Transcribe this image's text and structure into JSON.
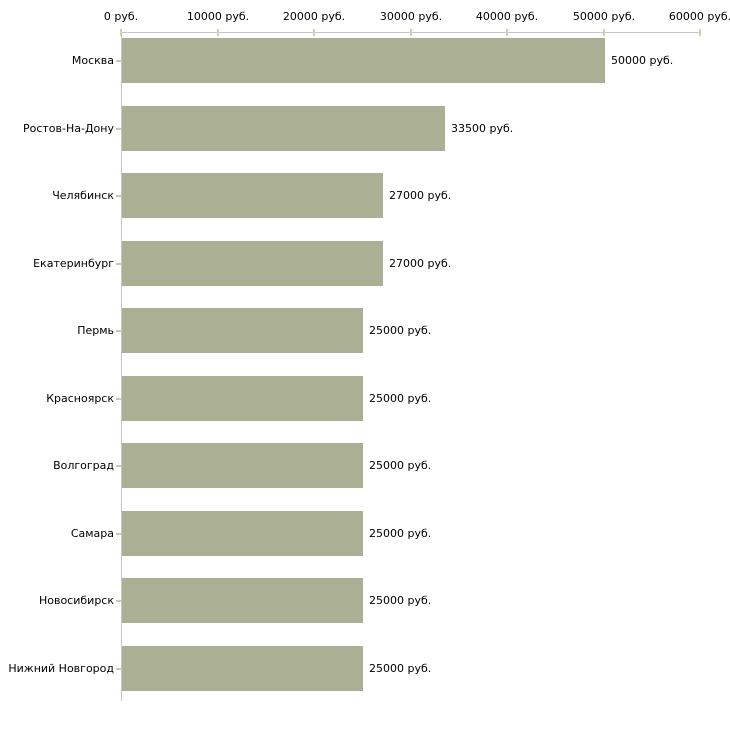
{
  "chart_data": {
    "type": "bar",
    "orientation": "horizontal",
    "title": "",
    "xlabel": "",
    "ylabel": "",
    "categories": [
      "Москва",
      "Ростов-На-Дону",
      "Челябинск",
      "Екатеринбург",
      "Пермь",
      "Красноярск",
      "Волгоград",
      "Самара",
      "Новосибирск",
      "Нижний Новгород"
    ],
    "values": [
      50000,
      33500,
      27000,
      27000,
      25000,
      25000,
      25000,
      25000,
      25000,
      25000
    ],
    "value_labels": [
      "50000 руб.",
      "33500 руб.",
      "27000 руб.",
      "27000 руб.",
      "25000 руб.",
      "25000 руб.",
      "25000 руб.",
      "25000 руб.",
      "25000 руб.",
      "25000 руб."
    ],
    "x_axis": {
      "position": "top",
      "min": 0,
      "max": 60000,
      "tick_values": [
        0,
        10000,
        20000,
        30000,
        40000,
        50000,
        60000
      ],
      "tick_labels": [
        "0 руб.",
        "10000 руб.",
        "20000 руб.",
        "30000 руб.",
        "40000 руб.",
        "50000 руб.",
        "60000 руб."
      ]
    },
    "legend": "none",
    "grid": "off",
    "colors": {
      "bar_fill": "#abb095",
      "axis_line": "#c6c6c6",
      "axis_tick": "#d3d0ae",
      "category_tick": "#cbc8ae",
      "text": "#000000",
      "background": "#ffffff"
    }
  }
}
